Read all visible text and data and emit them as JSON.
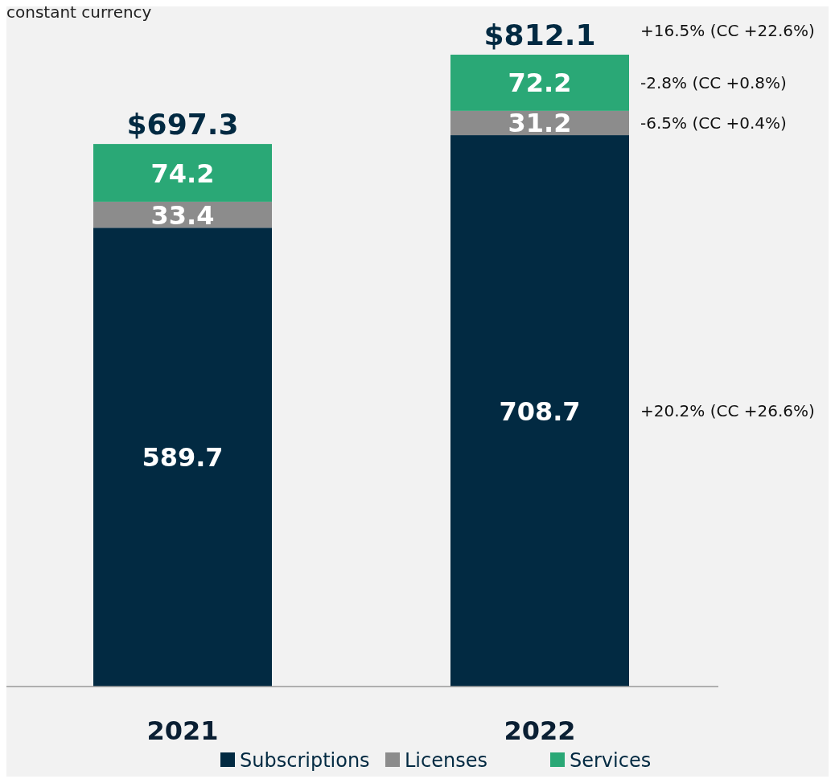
{
  "chart_data": {
    "type": "bar",
    "subtitle": "constant currency",
    "categories": [
      "2021",
      "2022"
    ],
    "stacked": true,
    "data_labels": true,
    "legend": "bottom",
    "totals": [
      "$697.3",
      "$812.1"
    ],
    "series": [
      {
        "name": "Subscriptions",
        "color": "#022a42",
        "values": [
          589.7,
          708.7
        ]
      },
      {
        "name": "Licenses",
        "color": "#8c8c8c",
        "values": [
          33.4,
          31.2
        ]
      },
      {
        "name": "Services",
        "color": "#2aa876",
        "values": [
          74.2,
          72.2
        ]
      }
    ],
    "annotations": [
      "+16.5% (CC +22.6%)",
      "-2.8% (CC +0.8%)",
      "-6.5% (CC +0.4%)",
      "+20.2% (CC +26.6%)"
    ]
  }
}
